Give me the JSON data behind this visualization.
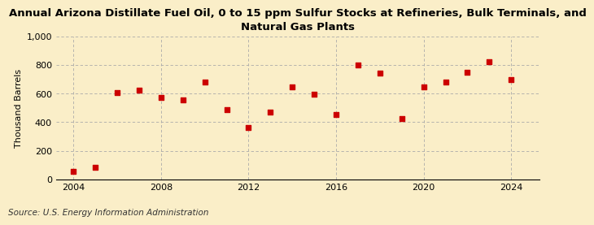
{
  "title": "Annual Arizona Distillate Fuel Oil, 0 to 15 ppm Sulfur Stocks at Refineries, Bulk Terminals, and\nNatural Gas Plants",
  "ylabel": "Thousand Barrels",
  "source": "Source: U.S. Energy Information Administration",
  "years": [
    2004,
    2005,
    2006,
    2007,
    2008,
    2009,
    2010,
    2011,
    2012,
    2013,
    2014,
    2015,
    2016,
    2017,
    2018,
    2019,
    2020,
    2021,
    2022,
    2023,
    2024
  ],
  "values": [
    55,
    85,
    605,
    625,
    575,
    555,
    680,
    490,
    365,
    470,
    650,
    595,
    455,
    800,
    745,
    425,
    645,
    680,
    750,
    825,
    700
  ],
  "marker_color": "#cc0000",
  "bg_color": "#faeec8",
  "grid_color": "#aaaaaa",
  "ylim": [
    0,
    1000
  ],
  "yticks": [
    0,
    200,
    400,
    600,
    800,
    1000
  ],
  "ytick_labels": [
    "0",
    "200",
    "400",
    "600",
    "800",
    "1,000"
  ],
  "xlim": [
    2003.2,
    2025.3
  ],
  "xticks": [
    2004,
    2008,
    2012,
    2016,
    2020,
    2024
  ],
  "title_fontsize": 9.5,
  "tick_fontsize": 8,
  "ylabel_fontsize": 8,
  "source_fontsize": 7.5
}
